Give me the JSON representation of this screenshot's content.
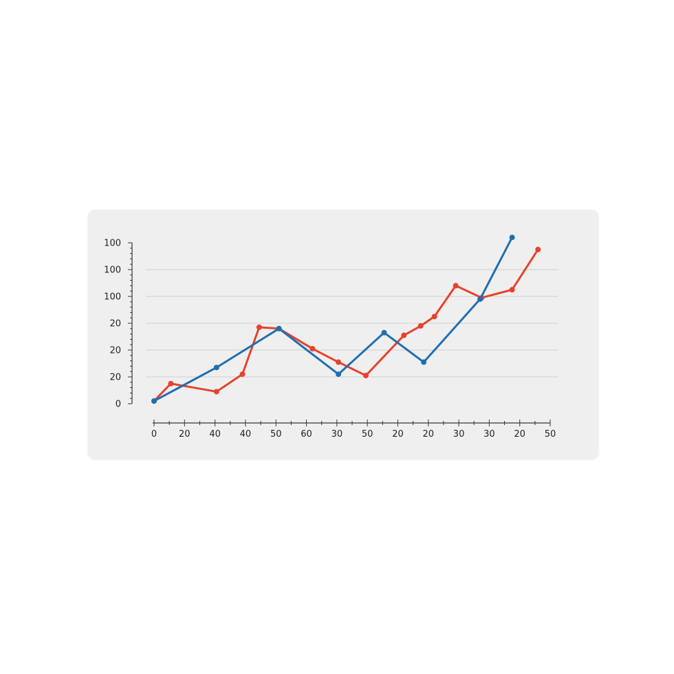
{
  "chart_data": {
    "type": "line",
    "title": "",
    "xlabel": "",
    "ylabel": "",
    "y_tick_labels": [
      "0",
      "20",
      "20",
      "20",
      "100",
      "100",
      "100"
    ],
    "x_tick_labels": [
      "0",
      "20",
      "40",
      "40",
      "50",
      "60",
      "30",
      "50",
      "20",
      "20",
      "30",
      "30",
      "20",
      "50"
    ],
    "ylim": [
      0,
      6
    ],
    "xlim": [
      0,
      13
    ],
    "grid": true,
    "legend": "none",
    "series": [
      {
        "color": "#e8412c",
        "points": [
          {
            "x": 0,
            "y": 0.1
          },
          {
            "x": 0.55,
            "y": 0.75
          },
          {
            "x": 2.05,
            "y": 0.45
          },
          {
            "x": 2.9,
            "y": 1.1
          },
          {
            "x": 3.45,
            "y": 2.85
          },
          {
            "x": 4.1,
            "y": 2.8
          },
          {
            "x": 5.2,
            "y": 2.05
          },
          {
            "x": 6.05,
            "y": 1.55
          },
          {
            "x": 6.95,
            "y": 1.05
          },
          {
            "x": 8.2,
            "y": 2.55
          },
          {
            "x": 8.75,
            "y": 2.9
          },
          {
            "x": 9.2,
            "y": 3.25
          },
          {
            "x": 9.9,
            "y": 4.4
          },
          {
            "x": 10.75,
            "y": 3.95
          },
          {
            "x": 11.75,
            "y": 4.25
          },
          {
            "x": 12.6,
            "y": 5.75
          }
        ]
      },
      {
        "color": "#1f6faf",
        "points": [
          {
            "x": 0,
            "y": 0.1
          },
          {
            "x": 2.05,
            "y": 1.35
          },
          {
            "x": 4.1,
            "y": 2.8
          },
          {
            "x": 6.05,
            "y": 1.1
          },
          {
            "x": 7.55,
            "y": 2.65
          },
          {
            "x": 8.85,
            "y": 1.55
          },
          {
            "x": 10.7,
            "y": 3.9
          },
          {
            "x": 11.75,
            "y": 6.2
          }
        ]
      }
    ]
  }
}
